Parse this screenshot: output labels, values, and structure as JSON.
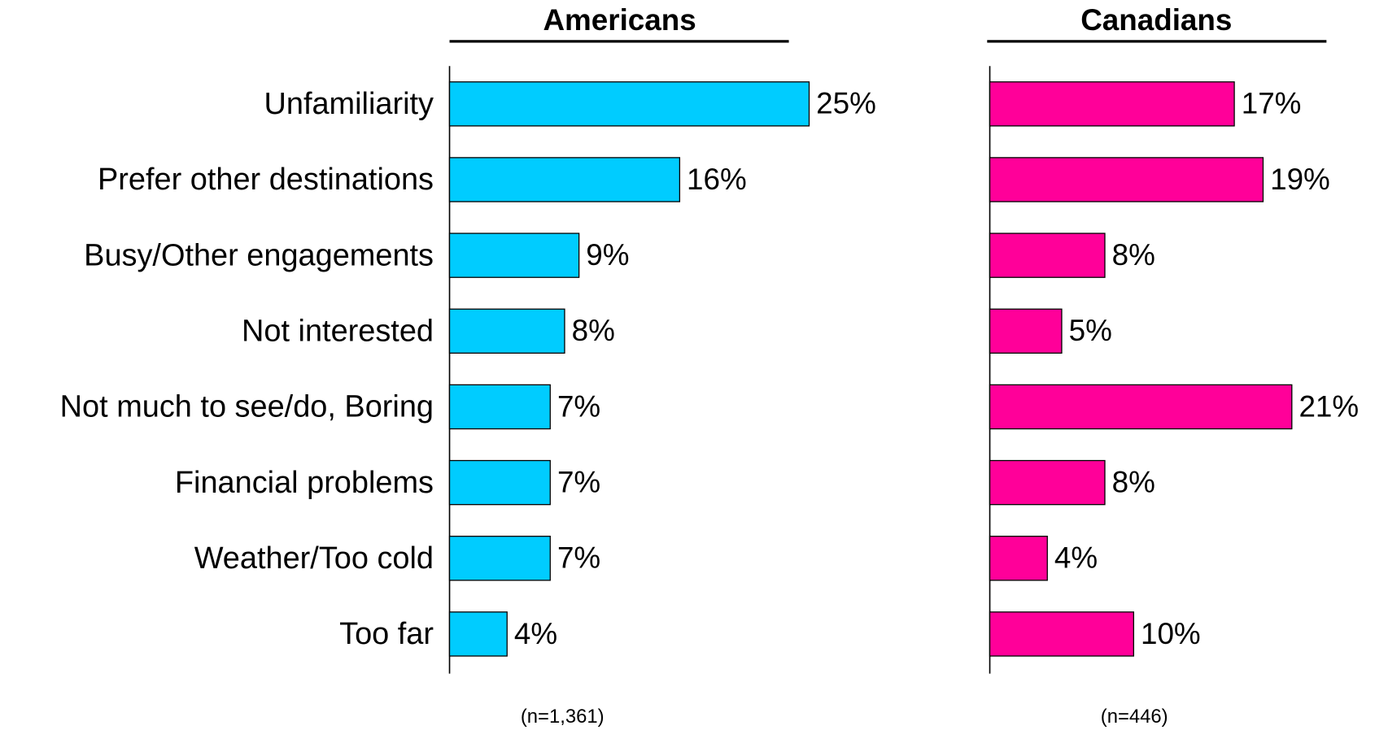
{
  "chart_data": [
    {
      "type": "bar",
      "orientation": "horizontal",
      "title": "Americans",
      "note": "(n=1,361)",
      "color": "#00ccff",
      "categories": [
        "Unfamiliarity",
        "Prefer other destinations",
        "Busy/Other engagements",
        "Not interested",
        "Not much to see/do, Boring",
        "Financial problems",
        "Weather/Too cold",
        "Too far"
      ],
      "values": [
        25,
        16,
        9,
        8,
        7,
        7,
        7,
        4
      ],
      "value_labels": [
        "25%",
        "16%",
        "9%",
        "8%",
        "7%",
        "7%",
        "7%",
        "4%"
      ]
    },
    {
      "type": "bar",
      "orientation": "horizontal",
      "title": "Canadians",
      "note": "(n=446)",
      "color": "#ff0099",
      "values": [
        17,
        19,
        8,
        5,
        21,
        8,
        4,
        10
      ],
      "value_labels": [
        "17%",
        "19%",
        "8%",
        "5%",
        "21%",
        "8%",
        "4%",
        "10%"
      ]
    }
  ]
}
